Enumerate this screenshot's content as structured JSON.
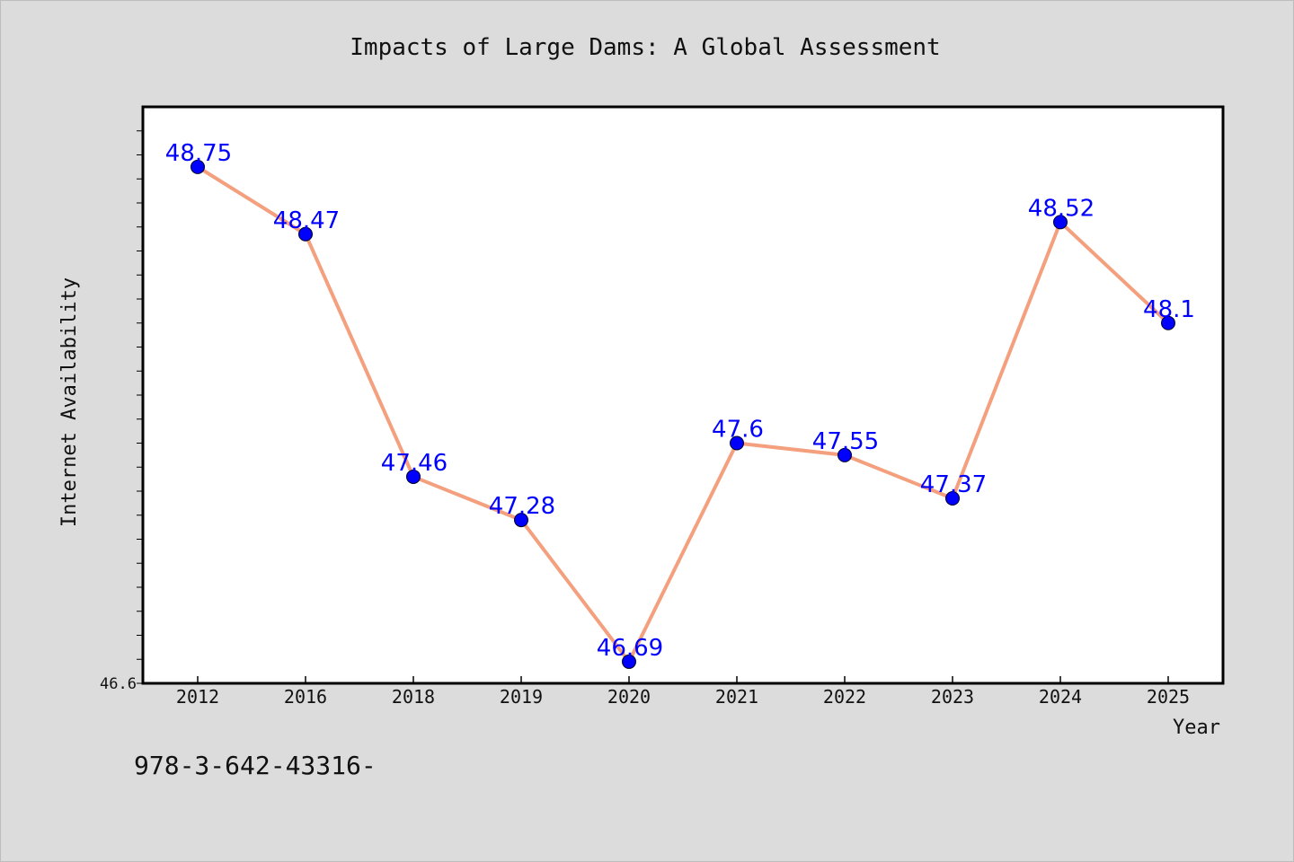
{
  "chart_data": {
    "type": "line",
    "title": "Impacts of Large Dams: A Global Assessment",
    "xlabel": "Year",
    "ylabel": "Internet Availability",
    "categories": [
      "2012",
      "2016",
      "2018",
      "2019",
      "2020",
      "2021",
      "2022",
      "2023",
      "2024",
      "2025"
    ],
    "series": [
      {
        "values": [
          48.75,
          48.47,
          47.46,
          47.28,
          46.69,
          47.6,
          47.55,
          47.37,
          48.52,
          48.1
        ],
        "labels": [
          "48.75",
          "48.47",
          "47.46",
          "47.28",
          "46.69",
          "47.6",
          "47.55",
          "47.37",
          "48.52",
          "48.1"
        ]
      }
    ],
    "ylim": [
      46.6,
      49.0
    ],
    "y_tick_label": "46.6",
    "grid": false,
    "line_color": "#f4a07e",
    "marker_color": "#0000ff"
  },
  "footer_text": "978-3-642-43316-"
}
